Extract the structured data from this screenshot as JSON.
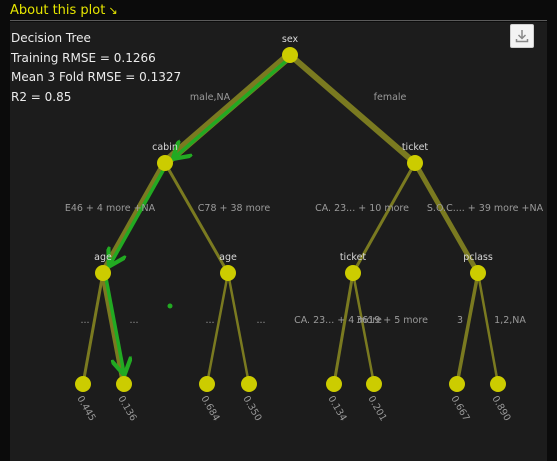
{
  "header": {
    "about_label": "About this plot",
    "about_icon": "arrow-down-right-icon",
    "download_icon": "download-icon"
  },
  "stats": {
    "title": "Decision Tree",
    "training_rmse": "Training RMSE = 0.1266",
    "cv_rmse": "Mean 3 Fold RMSE = 0.1327",
    "r2": "R2 = 0.85"
  },
  "colors": {
    "accent": "#e6e600",
    "node": "#cccc00",
    "edge": "#7a7a20",
    "path": "#22aa22",
    "panel": "#1c1c1c"
  },
  "chart_data": {
    "type": "tree",
    "highlighted_path": [
      "sex",
      "cabin",
      "age_left",
      "leaf_2"
    ],
    "nodes": [
      {
        "id": "sex",
        "label": "sex"
      },
      {
        "id": "cabin",
        "label": "cabin"
      },
      {
        "id": "ticket_top",
        "label": "ticket"
      },
      {
        "id": "age_left",
        "label": "age"
      },
      {
        "id": "age_right",
        "label": "age"
      },
      {
        "id": "ticket_mid",
        "label": "ticket"
      },
      {
        "id": "pclass",
        "label": "pclass"
      },
      {
        "id": "leaf_1",
        "label": "0.445"
      },
      {
        "id": "leaf_2",
        "label": "0.136"
      },
      {
        "id": "leaf_3",
        "label": "0.684"
      },
      {
        "id": "leaf_4",
        "label": "0.350"
      },
      {
        "id": "leaf_5",
        "label": "0.134"
      },
      {
        "id": "leaf_6",
        "label": "0.201"
      },
      {
        "id": "leaf_7",
        "label": "0.667"
      },
      {
        "id": "leaf_8",
        "label": "0.890"
      }
    ],
    "edges": [
      {
        "from": "sex",
        "to": "cabin",
        "label": "male,NA"
      },
      {
        "from": "sex",
        "to": "ticket_top",
        "label": "female"
      },
      {
        "from": "cabin",
        "to": "age_left",
        "label": "E46 + 4 more +NA"
      },
      {
        "from": "cabin",
        "to": "age_right",
        "label": "C78 + 38 more"
      },
      {
        "from": "ticket_top",
        "to": "ticket_mid",
        "label": "CA. 23... + 10 more"
      },
      {
        "from": "ticket_top",
        "to": "pclass",
        "label": "S.O.C.... + 39 more +NA"
      },
      {
        "from": "age_left",
        "to": "leaf_1",
        "label": "..."
      },
      {
        "from": "age_left",
        "to": "leaf_2",
        "label": "..."
      },
      {
        "from": "age_right",
        "to": "leaf_3",
        "label": "..."
      },
      {
        "from": "age_right",
        "to": "leaf_4",
        "label": "..."
      },
      {
        "from": "ticket_mid",
        "to": "leaf_5",
        "label": "CA. 23... + 4 more"
      },
      {
        "from": "ticket_mid",
        "to": "leaf_6",
        "label": "3619 + 5 more"
      },
      {
        "from": "pclass",
        "to": "leaf_7",
        "label": "3"
      },
      {
        "from": "pclass",
        "to": "leaf_8",
        "label": "1,2,NA"
      }
    ]
  }
}
